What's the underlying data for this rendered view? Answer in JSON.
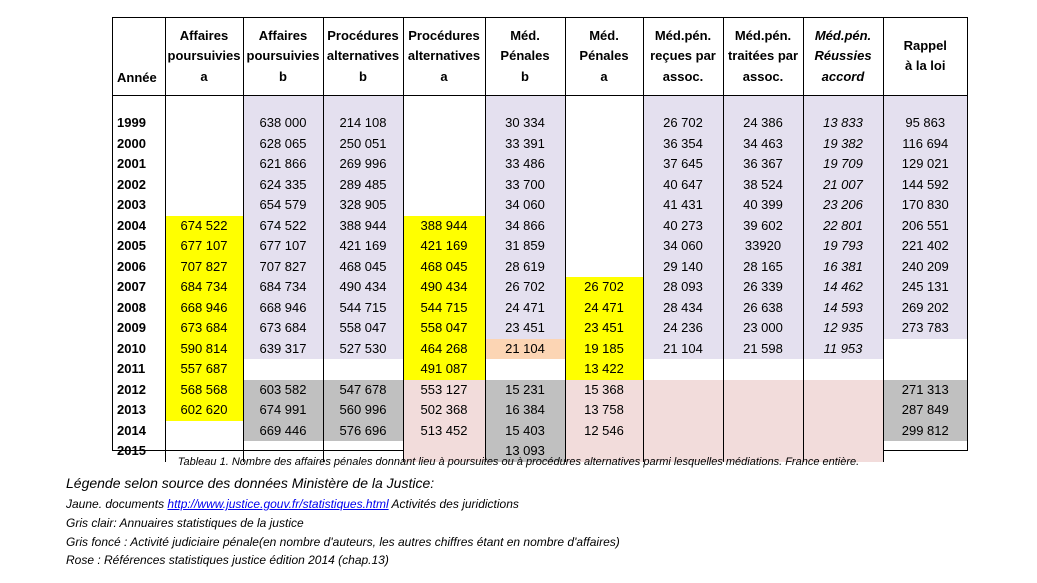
{
  "columns": [
    {
      "line1": "",
      "line2": "",
      "line3": "Année"
    },
    {
      "line1": "Affaires",
      "line2": "poursuivies",
      "line3": "a"
    },
    {
      "line1": "Affaires",
      "line2": "poursuivies",
      "line3": "b"
    },
    {
      "line1": "Procédures",
      "line2": "alternatives",
      "line3": "b"
    },
    {
      "line1": "Procédures",
      "line2": "alternatives",
      "line3": "a"
    },
    {
      "line1": "Méd.",
      "line2": "Pénales",
      "line3": "b"
    },
    {
      "line1": "Méd.",
      "line2": "Pénales",
      "line3": "a"
    },
    {
      "line1": "Méd.pén.",
      "line2": "reçues par",
      "line3": "assoc."
    },
    {
      "line1": "Méd.pén.",
      "line2": "traitées par",
      "line3": "assoc."
    },
    {
      "line1": "Méd.pén.",
      "line2": "Réussies",
      "line3": "accord"
    },
    {
      "line1": "Rappel",
      "line2": "à la loi",
      "line3": ""
    }
  ],
  "rows": [
    {
      "year": "1999",
      "cells": [
        "",
        "638 000",
        "214 108",
        "",
        "30 334",
        "",
        "26 702",
        "24 386",
        "13 833",
        "95 863"
      ]
    },
    {
      "year": "2000",
      "cells": [
        "",
        "628 065",
        "250 051",
        "",
        "33 391",
        "",
        "36 354",
        "34 463",
        "19 382",
        "116 694"
      ]
    },
    {
      "year": "2001",
      "cells": [
        "",
        "621 866",
        "269 996",
        "",
        "33 486",
        "",
        "37 645",
        "36 367",
        "19 709",
        "129 021"
      ]
    },
    {
      "year": "2002",
      "cells": [
        "",
        "624 335",
        "289 485",
        "",
        "33 700",
        "",
        "40 647",
        "38 524",
        "21 007",
        "144 592"
      ]
    },
    {
      "year": "2003",
      "cells": [
        "",
        "654 579",
        "328 905",
        "",
        "34 060",
        "",
        "41 431",
        "40 399",
        "23 206",
        "170 830"
      ]
    },
    {
      "year": "2004",
      "cells": [
        "674 522",
        "674 522",
        "388 944",
        "388 944",
        "34 866",
        "",
        "40 273",
        "39 602",
        "22 801",
        "206 551"
      ]
    },
    {
      "year": "2005",
      "cells": [
        "677 107",
        "677 107",
        "421 169",
        "421 169",
        "31 859",
        "",
        "34 060",
        "33920",
        "19 793",
        "221 402"
      ]
    },
    {
      "year": "2006",
      "cells": [
        "707 827",
        "707 827",
        "468 045",
        "468 045",
        "28 619",
        "",
        "29 140",
        "28 165",
        "16 381",
        "240 209"
      ]
    },
    {
      "year": "2007",
      "cells": [
        "684 734",
        "684 734",
        "490 434",
        "490 434",
        "26 702",
        "26 702",
        "28 093",
        "26 339",
        "14 462",
        "245 131"
      ]
    },
    {
      "year": "2008",
      "cells": [
        "668 946",
        "668 946",
        "544 715",
        "544 715",
        "24 471",
        "24 471",
        "28 434",
        "26 638",
        "14 593",
        "269 202"
      ]
    },
    {
      "year": "2009",
      "cells": [
        "673 684",
        "673 684",
        "558 047",
        "558 047",
        "23 451",
        "23 451",
        "24 236",
        "23 000",
        "12 935",
        "273 783"
      ]
    },
    {
      "year": "2010",
      "cells": [
        "590 814",
        "639 317",
        "527 530",
        "464 268",
        "21 104",
        "19 185",
        "21 104",
        "21 598",
        "11 953",
        ""
      ]
    },
    {
      "year": "2011",
      "cells": [
        "557 687",
        "",
        "",
        "491 087",
        "",
        "13 422",
        "",
        "",
        "",
        ""
      ]
    },
    {
      "year": "2012",
      "cells": [
        "568 568",
        "603 582",
        "547 678",
        "553 127",
        "15 231",
        "15 368",
        "",
        "",
        "",
        "271 313"
      ]
    },
    {
      "year": "2013",
      "cells": [
        "602 620",
        "674 991",
        "560 996",
        "502 368",
        "16 384",
        "13 758",
        "",
        "",
        "",
        "287 849"
      ]
    },
    {
      "year": "2014",
      "cells": [
        "",
        "669 446",
        "576 696",
        "513 452",
        "15 403",
        "12 546",
        "",
        "",
        "",
        "299 812"
      ]
    },
    {
      "year": "2015",
      "cells": [
        "",
        "",
        "",
        "",
        "13 093",
        "",
        "",
        "",
        "",
        ""
      ]
    }
  ],
  "colors": {
    "yellow": "#ffff00",
    "light_purple": "#e4e0ef",
    "dark_gray": "#c0c0c0",
    "pink": "#f2dcdb",
    "orange": "#fcd5b4"
  },
  "caption": "Tableau 1. Nombre des affaires pénales donnant lieu à poursuites ou à procédures alternatives parmi lesquelles médiations. France entière.",
  "legend": {
    "title": "Légende selon source des données Ministère de la Justice:",
    "yellow_prefix": "Jaune. documents ",
    "yellow_link": "http://www.justice.gouv.fr/statistiques.html",
    "yellow_suffix": " Activités des juridictions",
    "light_gray": "Gris clair: Annuaires statistiques de la justice",
    "dark_gray": "Gris foncé : Activité judiciaire pénale(en nombre d'auteurs, les autres chiffres étant en nombre d'affaires)",
    "pink": "Rose : Références statistiques justice édition 2014 (chap.13)"
  }
}
